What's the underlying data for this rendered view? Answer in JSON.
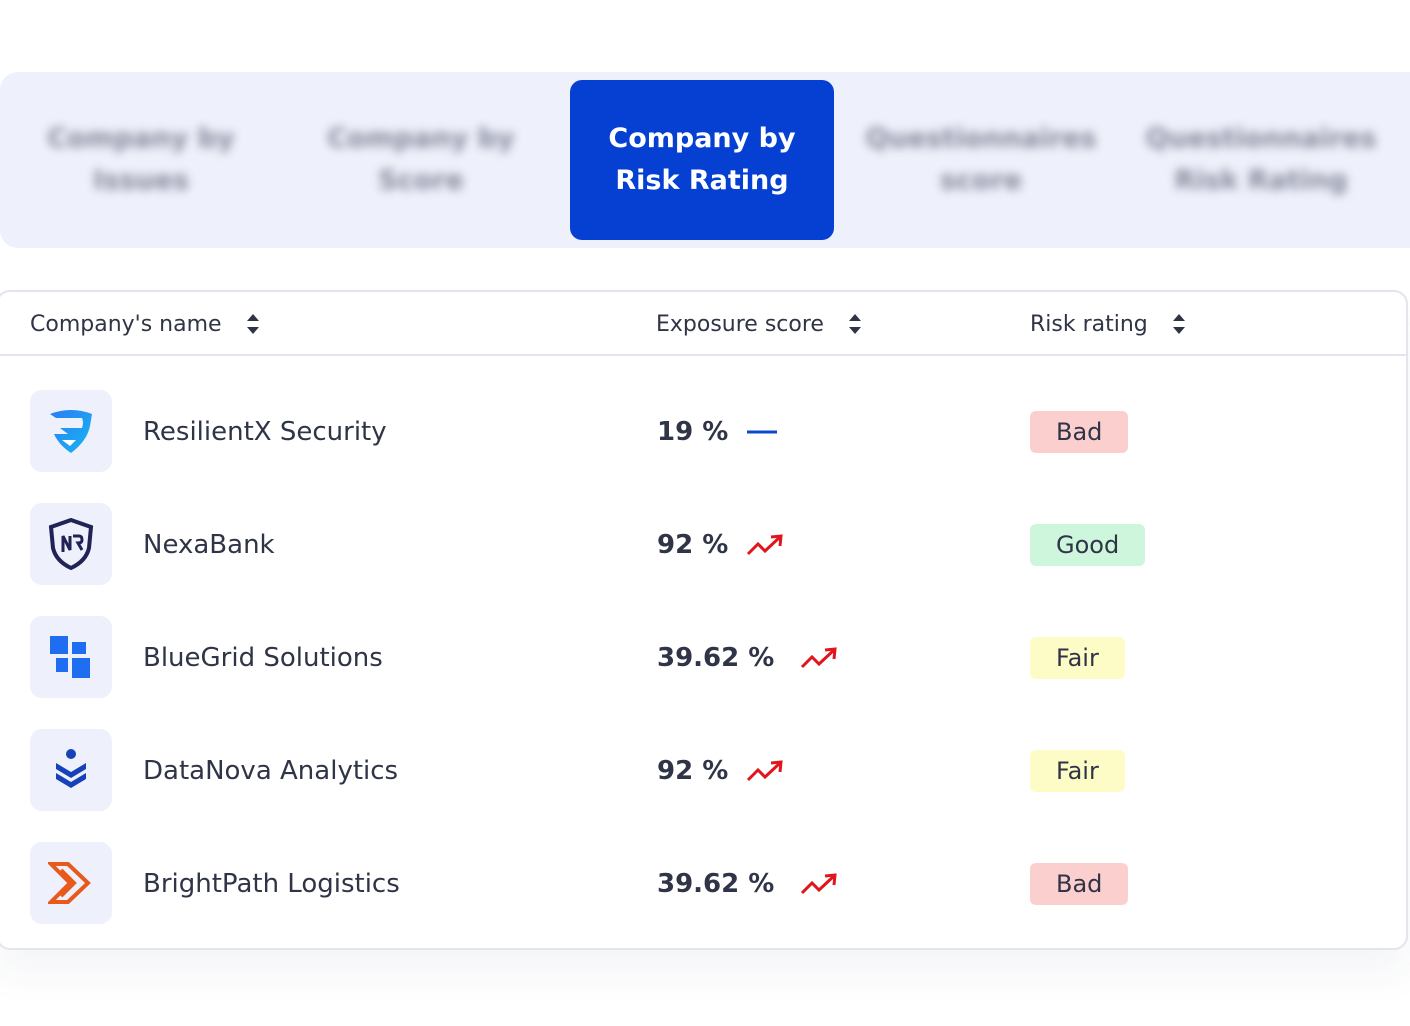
{
  "tabs": [
    {
      "line1": "Company by",
      "line2": "Issues",
      "active": false
    },
    {
      "line1": "Company by",
      "line2": "Score",
      "active": false
    },
    {
      "line1": "Company by",
      "line2": "Risk Rating",
      "active": true
    },
    {
      "line1": "Questionnaires",
      "line2": "score",
      "active": false
    },
    {
      "line1": "Questionnaires",
      "line2": "Risk Rating",
      "active": false
    }
  ],
  "table": {
    "columns": {
      "name": "Company's name",
      "exposure": "Exposure score",
      "risk": "Risk rating"
    },
    "rows": [
      {
        "name": "ResilientX Security",
        "logo": "resilientx-logo",
        "score": "19 %",
        "trend": "flat",
        "rating": "Bad"
      },
      {
        "name": "NexaBank",
        "logo": "nexabank-logo",
        "score": "92 %",
        "trend": "up",
        "rating": "Good"
      },
      {
        "name": "BlueGrid Solutions",
        "logo": "bluegrid-logo",
        "score": "39.62 %",
        "trend": "up",
        "rating": "Fair"
      },
      {
        "name": "DataNova Analytics",
        "logo": "datanova-logo",
        "score": "92 %",
        "trend": "up",
        "rating": "Fair"
      },
      {
        "name": "BrightPath Logistics",
        "logo": "brightpath-logo",
        "score": "39.62 %",
        "trend": "up",
        "rating": "Bad"
      }
    ]
  },
  "colors": {
    "accent": "#0540d2",
    "tab_bar_bg": "#eef0fb",
    "trend_up": "#e0161c",
    "trend_flat": "#0d47c9",
    "bad": "#fbcfcd",
    "good": "#cdf6dc",
    "fair": "#fdfcc7"
  }
}
